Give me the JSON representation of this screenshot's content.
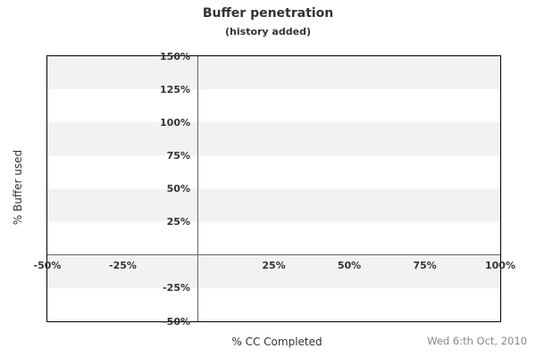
{
  "header": {
    "title": "Buffer penetration",
    "subtitle": "(history added)"
  },
  "axes": {
    "x_label": "% CC Completed",
    "y_label": "% Buffer used",
    "y_ticks": [
      {
        "value": 150,
        "label": "150%"
      },
      {
        "value": 125,
        "label": "125%"
      },
      {
        "value": 100,
        "label": "100%"
      },
      {
        "value": 75,
        "label": "75%"
      },
      {
        "value": 50,
        "label": "50%"
      },
      {
        "value": 25,
        "label": "25%"
      },
      {
        "value": -25,
        "label": "-25%"
      },
      {
        "value": -50,
        "label": "-50%"
      }
    ],
    "x_ticks": [
      {
        "value": -50,
        "label": "-50%"
      },
      {
        "value": -25,
        "label": "-25%"
      },
      {
        "value": 25,
        "label": "25%"
      },
      {
        "value": 50,
        "label": "50%"
      },
      {
        "value": 75,
        "label": "75%"
      },
      {
        "value": 100,
        "label": "100%"
      }
    ]
  },
  "footer": {
    "date": "Wed 6:th Oct, 2010"
  },
  "colors": {
    "band": "#f2f2f2",
    "border": "#000000",
    "zero_line": "#666666",
    "text": "#333333",
    "date_text": "#888888"
  },
  "chart_data": {
    "type": "line",
    "title": "Buffer penetration",
    "subtitle": "(history added)",
    "xlabel": "% CC Completed",
    "ylabel": "% Buffer used",
    "xlim": [
      -50,
      100
    ],
    "ylim": [
      -50,
      150
    ],
    "x_tick_labels": [
      "-50%",
      "-25%",
      "25%",
      "50%",
      "75%",
      "100%"
    ],
    "y_tick_labels": [
      "150%",
      "125%",
      "100%",
      "75%",
      "50%",
      "25%",
      "-25%",
      "-50%"
    ],
    "series": [],
    "grid": "alternating horizontal gray/white bands every 25%, axes cross at (0%, 0%)",
    "legend_position": "none",
    "annotations": [
      "Wed 6:th Oct, 2010"
    ],
    "notes": "empty buffer fever chart - no data points plotted"
  }
}
